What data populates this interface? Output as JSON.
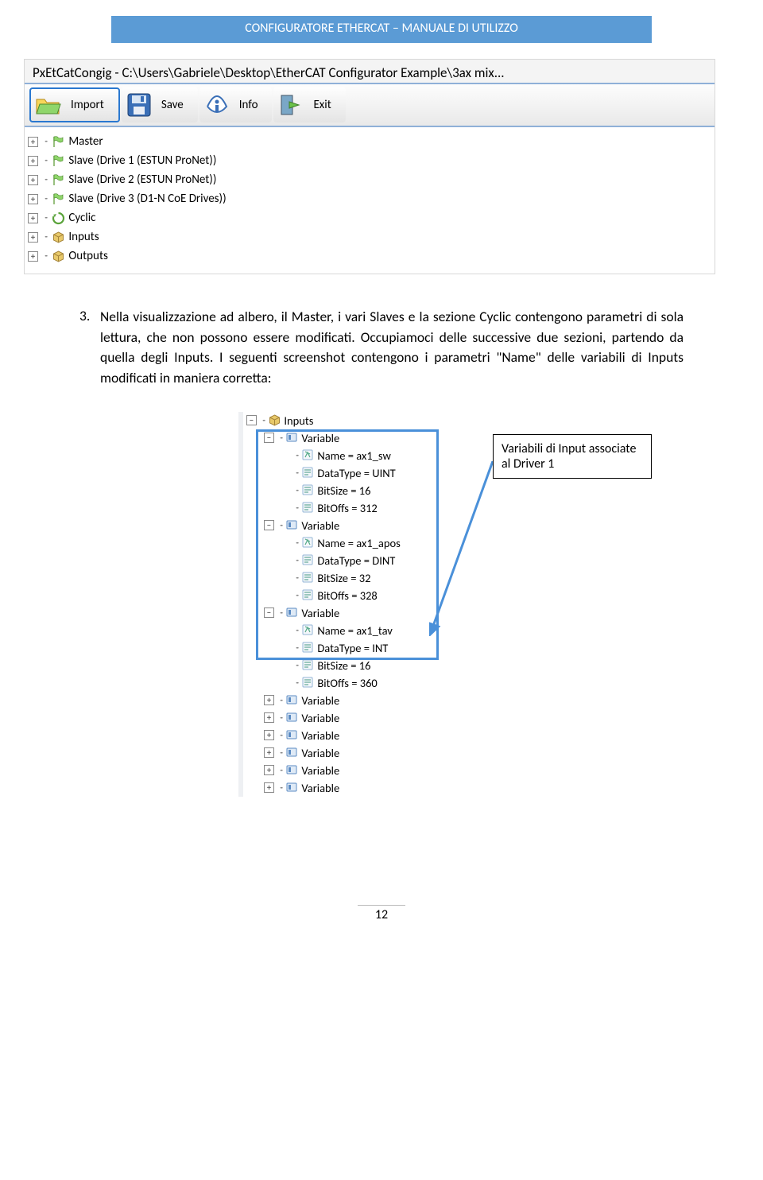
{
  "header": {
    "title": "CONFIGURATORE ETHERCAT – MANUALE DI UTILIZZO"
  },
  "window1": {
    "title": "PxEtCatCongig - C:\\Users\\Gabriele\\Desktop\\EtherCAT Configurator Example\\3ax mix...",
    "toolbar": {
      "import": "Import",
      "save": "Save",
      "info": "Info",
      "exit": "Exit"
    },
    "tree": [
      "Master",
      "Slave (Drive 1 (ESTUN ProNet))",
      "Slave (Drive 2 (ESTUN ProNet))",
      "Slave (Drive 3 (D1-N CoE Drives))",
      "Cyclic",
      "Inputs",
      "Outputs"
    ]
  },
  "paragraph": {
    "num": "3.",
    "text": "Nella visualizzazione ad albero, il Master, i vari Slaves e la sezione Cyclic contengono parametri di sola lettura, che non possono essere modificati. Occupiamoci delle successive due sezioni, partendo da quella degli Inputs. I seguenti screenshot contengono i parametri \"Name\" delle variabili di Inputs modificati in maniera corretta:"
  },
  "callout": {
    "text": "Variabili di Input associate al Driver 1"
  },
  "tree2": {
    "root": "Inputs",
    "var_label": "Variable",
    "groups": [
      {
        "rows": [
          "Name = ax1_sw",
          "DataType = UINT",
          "BitSize = 16",
          "BitOffs = 312"
        ]
      },
      {
        "rows": [
          "Name = ax1_apos",
          "DataType = DINT",
          "BitSize = 32",
          "BitOffs = 328"
        ]
      },
      {
        "rows": [
          "Name = ax1_tav",
          "DataType = INT",
          "BitSize = 16",
          "BitOffs = 360"
        ]
      }
    ],
    "collapsed_count": 6
  },
  "page": "12",
  "colors": {
    "header_bg": "#5b9bd5",
    "highlight_border": "#4a90d9",
    "arrow": "#4a90d9"
  }
}
